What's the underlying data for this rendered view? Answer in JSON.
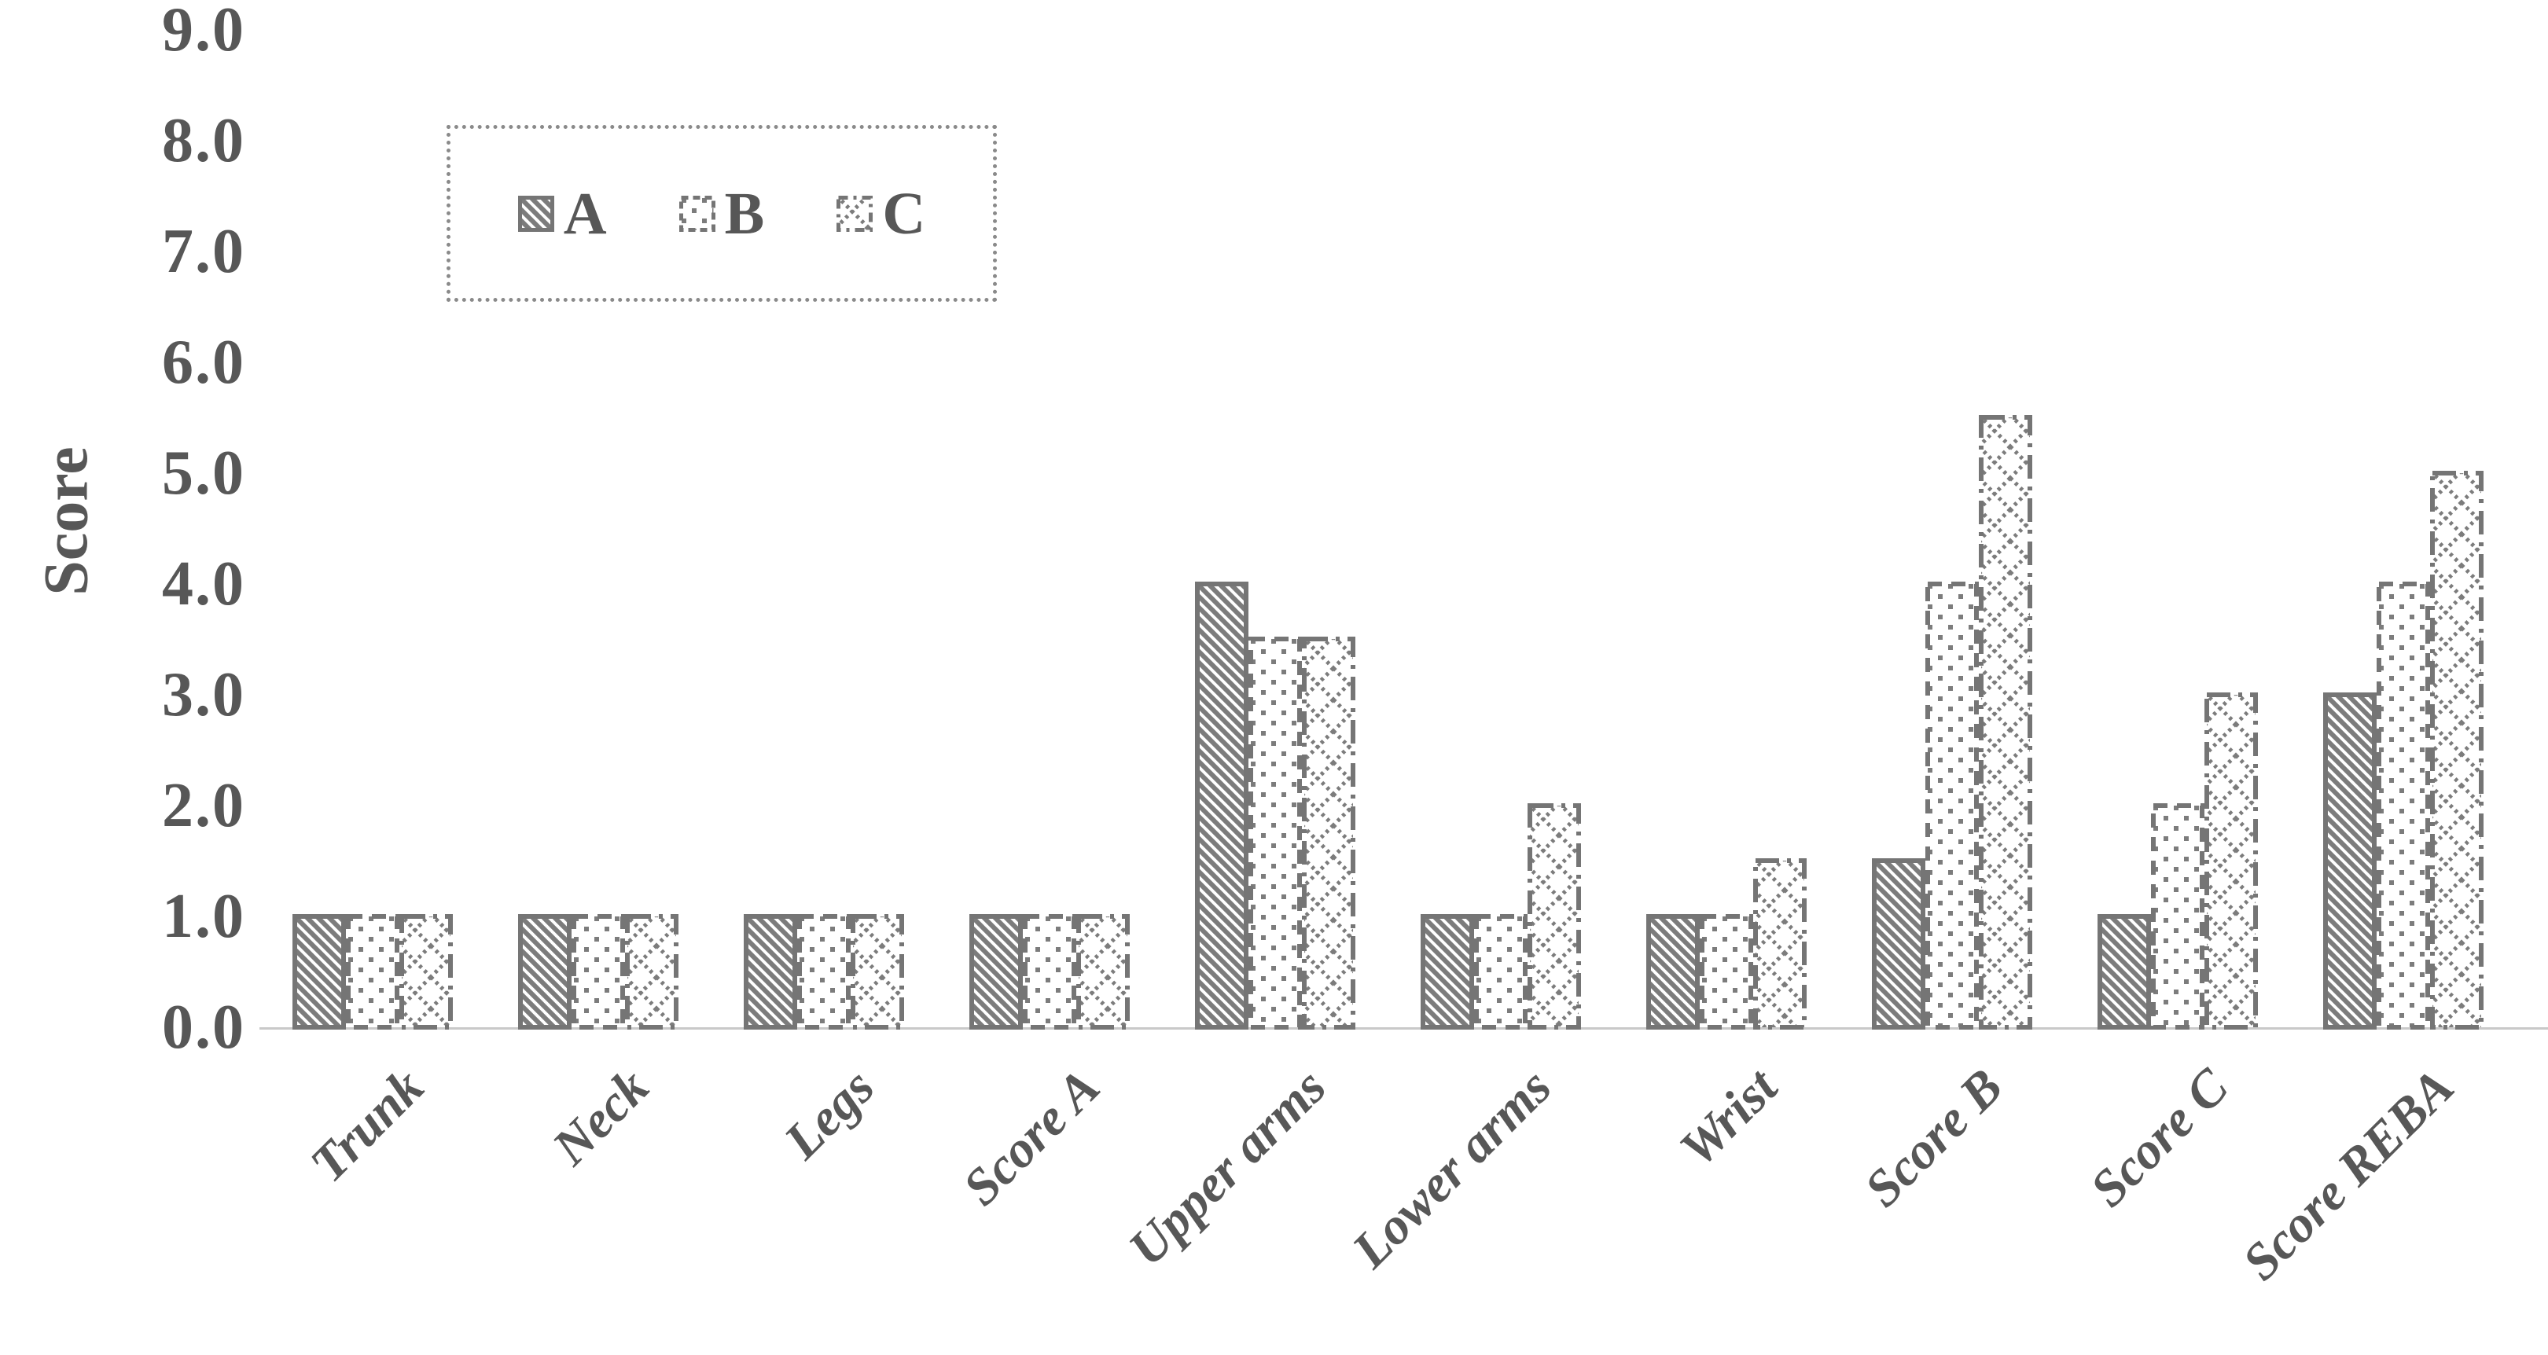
{
  "chart_data": {
    "type": "bar",
    "ylabel": "Score",
    "categories": [
      "Trunk",
      "Neck",
      "Legs",
      "Score A",
      "Upper arms",
      "Lower arms",
      "Wrist",
      "Score B",
      "Score C",
      "Score REBA"
    ],
    "series": [
      {
        "name": "A",
        "pattern": "diagonal-stripes",
        "border": "solid",
        "values": [
          1.0,
          1.0,
          1.0,
          1.0,
          4.0,
          1.0,
          1.0,
          1.5,
          1.0,
          3.0
        ]
      },
      {
        "name": "B",
        "pattern": "fine-dots",
        "border": "dashed",
        "values": [
          1.0,
          1.0,
          1.0,
          1.0,
          3.5,
          1.0,
          1.0,
          4.0,
          2.0,
          4.0
        ]
      },
      {
        "name": "C",
        "pattern": "diamond-crosshatch",
        "border": "dash-dot",
        "values": [
          1.0,
          1.0,
          1.0,
          1.0,
          3.5,
          2.0,
          1.5,
          5.5,
          3.0,
          5.0
        ]
      }
    ],
    "ylim": [
      0,
      9
    ],
    "ytick_step": 1.0,
    "yticks": [
      "9.0",
      "8.0",
      "7.0",
      "6.0",
      "5.0",
      "4.0",
      "3.0",
      "2.0",
      "1.0",
      "0.0"
    ],
    "grid": false,
    "legend": {
      "position": "top-left",
      "labels": [
        "A",
        "B",
        "C"
      ]
    }
  },
  "colors": {
    "bar_pattern": "#7c7c7c",
    "bar_border": "#757575",
    "text": "#575757",
    "axis_line": "#c9c9c9",
    "legend_border": "#8a8a8a",
    "background": "#ffffff"
  }
}
